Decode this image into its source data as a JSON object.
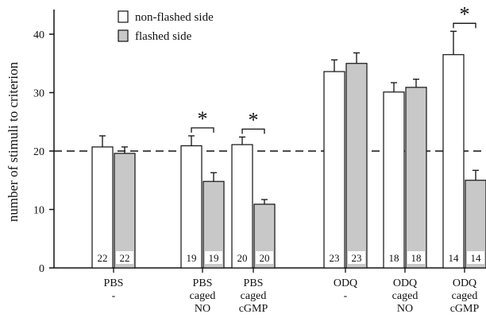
{
  "chart_data": {
    "type": "bar",
    "title": "",
    "xlabel": "",
    "ylabel": "number of stimuli to criterion",
    "ylim": [
      0,
      44
    ],
    "yticks": [
      0,
      10,
      20,
      30,
      40
    ],
    "reference_line": 20,
    "legend": {
      "position": "top-left"
    },
    "colors": {
      "non_flashed": "#ffffff",
      "flashed": "#c8c8c8",
      "stroke": "#111111"
    },
    "categories": [
      {
        "lines": [
          "PBS",
          "-"
        ]
      },
      {
        "lines": [
          "PBS",
          "caged",
          "NO"
        ]
      },
      {
        "lines": [
          "PBS",
          "caged",
          "cGMP"
        ]
      },
      {
        "lines": [
          "ODQ",
          "-"
        ]
      },
      {
        "lines": [
          "ODQ",
          "caged",
          "NO"
        ]
      },
      {
        "lines": [
          "ODQ",
          "caged",
          "cGMP"
        ]
      }
    ],
    "series": [
      {
        "name": "non-flashed side",
        "values": [
          20.7,
          20.9,
          21.1,
          33.6,
          30.1,
          36.5
        ],
        "errors": [
          1.9,
          1.7,
          1.3,
          2.0,
          1.6,
          4.0
        ],
        "n": [
          "22",
          "19",
          "20",
          "23",
          "18",
          "14"
        ]
      },
      {
        "name": "flashed side",
        "values": [
          19.6,
          14.8,
          10.9,
          35.0,
          30.9,
          15.0
        ],
        "errors": [
          1.1,
          1.5,
          0.8,
          1.8,
          1.4,
          1.7
        ],
        "n": [
          "22",
          "19",
          "20",
          "23",
          "18",
          "14"
        ]
      }
    ],
    "significance": [
      {
        "category_index": 1,
        "label": "*"
      },
      {
        "category_index": 2,
        "label": "*"
      },
      {
        "category_index": 5,
        "label": "*"
      }
    ]
  }
}
